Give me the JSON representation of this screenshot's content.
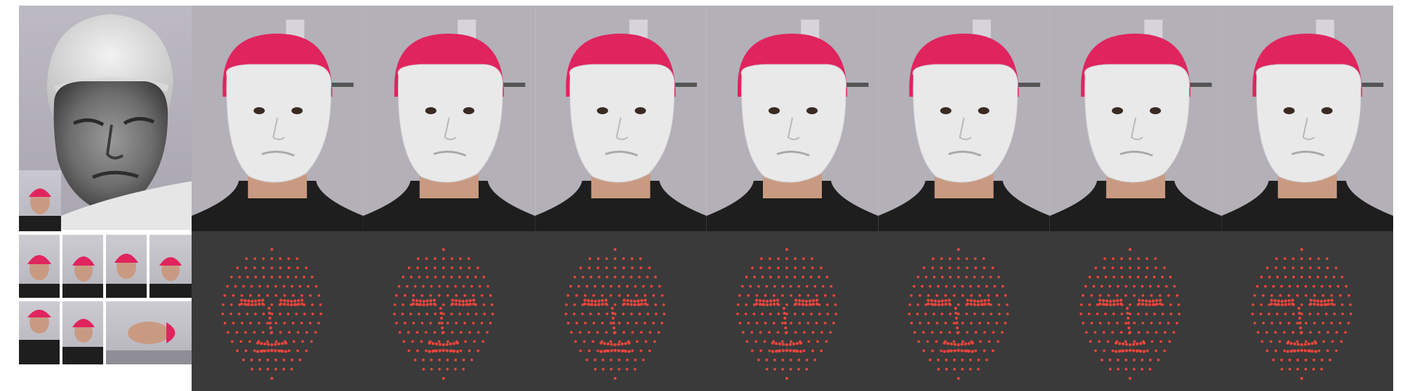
{
  "figure": {
    "input_scan": {
      "icon": "grayscale-3d-face-scan"
    },
    "input_views": {
      "count": 9,
      "icon": "multi-view-photo-thumbnail"
    },
    "reconstructions": {
      "count": 7,
      "icon": "white-mesh-overlay-face"
    },
    "point_clouds": {
      "count": 7,
      "point_color": "#e8453c",
      "background": "#3a3a3a",
      "icon": "red-landmark-point-cloud"
    },
    "colors": {
      "cap": "#e0245e",
      "mesh": "#e9e9ea",
      "background_wall": "#b3b0b8",
      "shirt": "#1e1e1e",
      "skin": "#c99a82"
    }
  }
}
